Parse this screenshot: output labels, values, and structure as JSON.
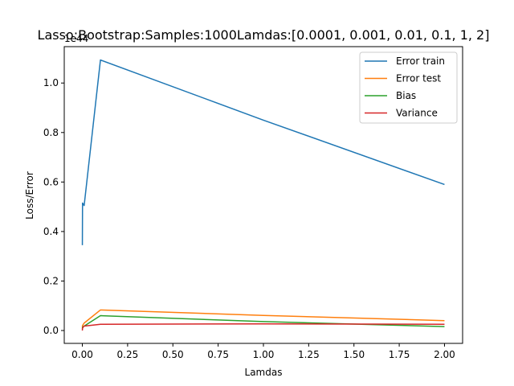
{
  "chart_data": {
    "type": "line",
    "title": "Lasso:Bootstrap:Samples:1000Lamdas:[0.0001, 0.001, 0.01, 0.1, 1, 2]",
    "xlabel": "Lamdas",
    "ylabel": "Loss/Error",
    "offset_label": "1e44",
    "xlim": [
      -0.0999,
      2.1
    ],
    "ylim": [
      -0.052,
      1.147
    ],
    "xticks": [
      0.0,
      0.25,
      0.5,
      0.75,
      1.0,
      1.25,
      1.5,
      1.75,
      2.0
    ],
    "xtick_labels": [
      "0.00",
      "0.25",
      "0.50",
      "0.75",
      "1.00",
      "1.25",
      "1.50",
      "1.75",
      "2.00"
    ],
    "yticks": [
      0.0,
      0.2,
      0.4,
      0.6,
      0.8,
      1.0
    ],
    "ytick_labels": [
      "0.0",
      "0.2",
      "0.4",
      "0.6",
      "0.8",
      "1.0"
    ],
    "x": [
      0.0001,
      0.001,
      0.01,
      0.1,
      1,
      2
    ],
    "legend_location": "top-right",
    "series": [
      {
        "name": "Error train",
        "color": "#1f77b4",
        "values": [
          0.345,
          0.515,
          0.505,
          1.093,
          0.85,
          0.59
        ]
      },
      {
        "name": "Error test",
        "color": "#ff7f0e",
        "values": [
          0.013,
          0.02,
          0.03,
          0.083,
          0.061,
          0.04
        ]
      },
      {
        "name": "Bias",
        "color": "#2ca02c",
        "values": [
          0.007,
          0.013,
          0.018,
          0.06,
          0.036,
          0.016
        ]
      },
      {
        "name": "Variance",
        "color": "#d62728",
        "values": [
          0.0,
          0.01,
          0.018,
          0.025,
          0.027,
          0.025
        ]
      }
    ]
  }
}
